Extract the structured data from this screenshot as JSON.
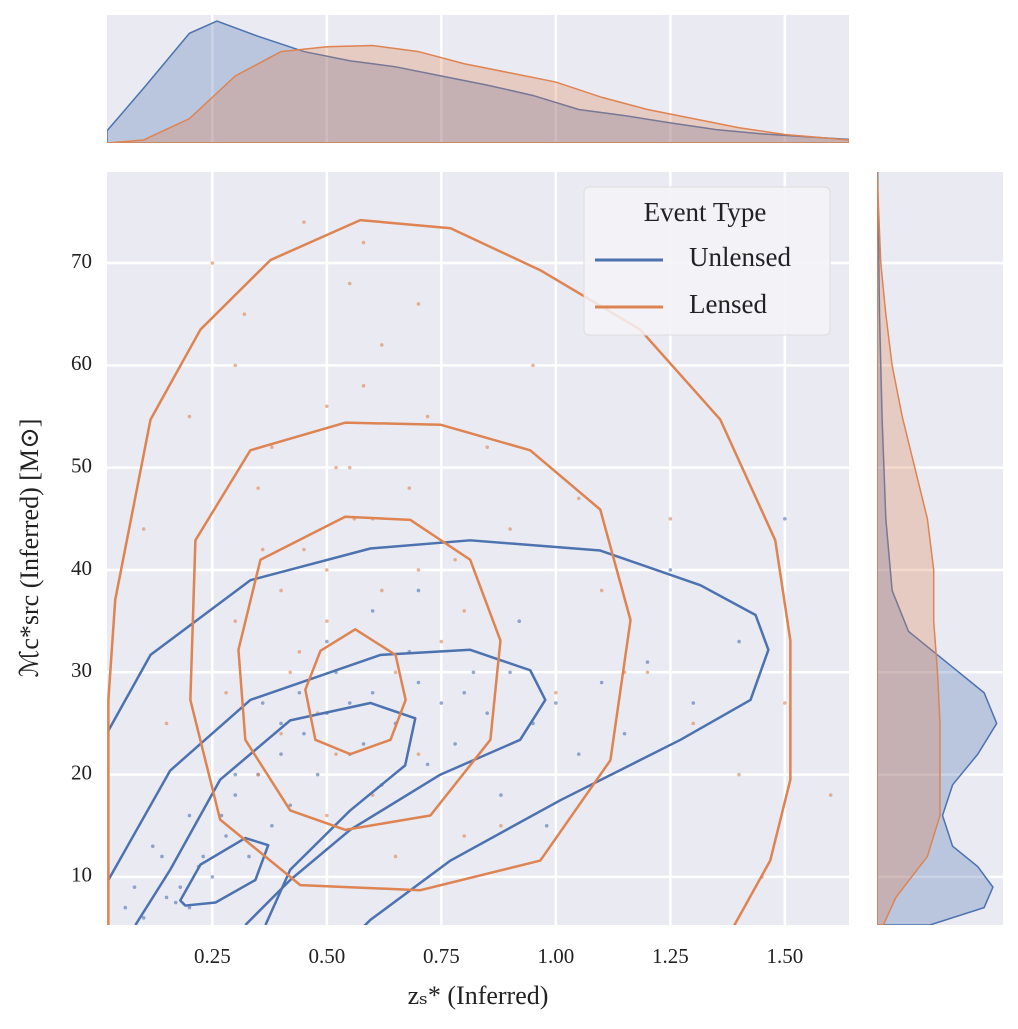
{
  "chart_data": {
    "type": "scatter",
    "xlabel": "zₛ* (Inferred)",
    "ylabel": "ℳc*src (Inferred) [M⊙]",
    "xlim": [
      0.02,
      1.64
    ],
    "ylim": [
      5.3,
      78.9
    ],
    "xticks": [
      0.25,
      {
        "value": 0.5,
        "label": "0.50"
      },
      0.75,
      {
        "value": 1.0,
        "label": "1.00"
      },
      1.25,
      {
        "value": 1.5,
        "label": "1.50"
      }
    ],
    "yticks": [
      10,
      20,
      30,
      40,
      50,
      60,
      70
    ],
    "grid": true,
    "legend": "upper right",
    "legend_title": "Event Type",
    "marginal_x_ylim": [
      0,
      2.1
    ],
    "marginal_y_xlim": [
      0,
      1.0
    ],
    "series": [
      {
        "name": "Unlensed",
        "color": "#4c72b0",
        "x": [
          0.15,
          0.18,
          0.2,
          0.22,
          0.25,
          0.12,
          0.1,
          0.28,
          0.3,
          0.17,
          0.35,
          0.4,
          0.45,
          0.5,
          0.55,
          0.6,
          0.65,
          0.7,
          0.75,
          0.8,
          0.85,
          0.9,
          0.95,
          1.0,
          1.05,
          1.1,
          0.42,
          0.48,
          0.52,
          0.58,
          0.62,
          0.68,
          0.72,
          0.38,
          0.33,
          0.27,
          0.23,
          0.08,
          0.06,
          1.2,
          1.3,
          1.4,
          0.88,
          0.92,
          0.78,
          0.5,
          0.44,
          0.6,
          1.15,
          0.3,
          0.2,
          0.14,
          0.98,
          1.25,
          1.5,
          0.7,
          0.4,
          0.36,
          0.55,
          0.82
        ],
        "y": [
          8,
          9,
          7,
          11,
          10,
          13,
          6,
          14,
          18,
          7.5,
          20,
          22,
          24,
          26,
          27,
          28,
          25,
          29,
          27,
          28,
          26,
          30,
          25,
          27,
          22,
          29,
          17,
          20,
          30,
          23,
          19,
          32,
          21,
          15,
          12,
          16,
          12,
          9,
          7,
          31,
          27,
          33,
          18,
          35,
          23,
          33,
          28,
          36,
          24,
          20,
          16,
          12,
          15,
          40,
          45,
          38,
          25,
          27,
          22,
          30
        ],
        "contours": [
          {
            "closed": false,
            "x": [
              0.023,
              0.115,
              0.333,
              0.595,
              0.813,
              1.097,
              1.316,
              1.436,
              1.464,
              1.425,
              1.272,
              1.01,
              0.77,
              0.595,
              0.508
            ],
            "y": [
              24.3,
              31.7,
              39.0,
              42.1,
              42.9,
              41.9,
              38.5,
              35.6,
              32.2,
              27.3,
              23.4,
              17.5,
              11.6,
              5.8,
              1.9
            ]
          },
          {
            "closed": false,
            "x": [
              0.023,
              0.158,
              0.333,
              0.617,
              0.813,
              0.944,
              0.977,
              0.922,
              0.748,
              0.551,
              0.42,
              0.322
            ],
            "y": [
              9.7,
              20.4,
              27.3,
              31.7,
              32.2,
              30.2,
              27.3,
              23.4,
              20.0,
              14.6,
              9.7,
              5.3
            ]
          },
          {
            "closed": false,
            "x": [
              0.082,
              0.158,
              0.267,
              0.42,
              0.595,
              0.693,
              0.671,
              0.551,
              0.42,
              0.366
            ],
            "y": [
              5.3,
              10.7,
              19.5,
              25.3,
              27.0,
              25.5,
              20.9,
              16.5,
              10.7,
              5.3
            ]
          },
          {
            "closed": true,
            "x": [
              0.18,
              0.224,
              0.322,
              0.372,
              0.344,
              0.257,
              0.191
            ],
            "y": [
              7.7,
              11.2,
              13.8,
              13.1,
              9.7,
              7.5,
              7.2
            ]
          }
        ],
        "marginal_x": {
          "x": [
            0.02,
            0.1,
            0.2,
            0.26,
            0.35,
            0.45,
            0.55,
            0.65,
            0.75,
            0.85,
            0.95,
            1.05,
            1.15,
            1.25,
            1.35,
            1.45,
            1.55,
            1.64
          ],
          "density": [
            0.2,
            0.9,
            1.8,
            2.0,
            1.75,
            1.5,
            1.35,
            1.25,
            1.1,
            0.95,
            0.78,
            0.55,
            0.45,
            0.33,
            0.22,
            0.15,
            0.1,
            0.06
          ]
        },
        "marginal_y": {
          "y": [
            5.3,
            7,
            9,
            11,
            13,
            16,
            19,
            22,
            25,
            28,
            31,
            34,
            38,
            45,
            55,
            65,
            78.9
          ],
          "density": [
            0.42,
            0.85,
            0.92,
            0.8,
            0.6,
            0.52,
            0.6,
            0.8,
            0.95,
            0.85,
            0.55,
            0.25,
            0.12,
            0.07,
            0.04,
            0.02,
            0.005
          ]
        }
      },
      {
        "name": "Lensed",
        "color": "#dd8452",
        "x": [
          0.1,
          0.2,
          0.3,
          0.35,
          0.4,
          0.45,
          0.5,
          0.55,
          0.6,
          0.65,
          0.7,
          0.75,
          0.8,
          0.9,
          1.0,
          1.1,
          1.2,
          1.3,
          1.4,
          1.5,
          1.6,
          0.25,
          0.32,
          0.38,
          0.42,
          0.48,
          0.52,
          0.58,
          0.62,
          0.68,
          0.72,
          0.78,
          0.85,
          0.95,
          1.05,
          1.15,
          0.3,
          0.4,
          0.5,
          0.6,
          0.7,
          0.45,
          0.55,
          0.35,
          0.65,
          0.15,
          0.28,
          0.88,
          1.25,
          1.45,
          0.5,
          0.56,
          0.62,
          0.44,
          0.5,
          0.58,
          0.7,
          0.8,
          0.36,
          0.52
        ],
        "y": [
          44,
          55,
          60,
          48,
          38,
          42,
          35,
          50,
          45,
          30,
          40,
          33,
          36,
          44,
          28,
          38,
          30,
          25,
          20,
          27,
          18,
          70,
          65,
          52,
          30,
          26,
          22,
          58,
          62,
          48,
          55,
          41,
          52,
          60,
          47,
          30,
          35,
          24,
          16,
          18,
          66,
          74,
          68,
          20,
          12,
          25,
          28,
          15,
          45,
          10,
          40,
          45,
          38,
          32,
          56,
          72,
          22,
          14,
          42,
          50
        ],
        "contours": [
          {
            "closed": false,
            "x": [
              0.023,
              0.023,
              0.038,
              0.115,
              0.224,
              0.377,
              0.573,
              0.77,
              0.966,
              1.184,
              1.359,
              1.479,
              1.512,
              1.512,
              1.468,
              1.359
            ],
            "y": [
              1.9,
              27.3,
              37.1,
              54.7,
              63.5,
              70.3,
              74.2,
              73.4,
              69.3,
              63.5,
              54.7,
              42.9,
              33.1,
              19.5,
              11.6,
              2.8
            ]
          },
          {
            "closed": true,
            "x": [
              0.54,
              0.333,
              0.213,
              0.202,
              0.267,
              0.442,
              0.704,
              0.966,
              1.119,
              1.163,
              1.097,
              0.944,
              0.748
            ],
            "y": [
              54.4,
              51.7,
              42.9,
              27.3,
              15.6,
              9.2,
              8.7,
              11.6,
              21.4,
              35.1,
              45.9,
              51.7,
              54.2
            ]
          },
          {
            "closed": true,
            "x": [
              0.54,
              0.355,
              0.307,
              0.322,
              0.42,
              0.54,
              0.726,
              0.857,
              0.879,
              0.813,
              0.682
            ],
            "y": [
              45.2,
              41.0,
              32.2,
              23.4,
              16.5,
              14.6,
              16.0,
              23.4,
              33.1,
              41.0,
              44.9
            ]
          },
          {
            "closed": true,
            "x": [
              0.562,
              0.65,
              0.672,
              0.639,
              0.551,
              0.475,
              0.453,
              0.486
            ],
            "y": [
              34.2,
              31.7,
              27.3,
              23.4,
              22.0,
              23.4,
              28.3,
              32.1
            ]
          }
        ],
        "marginal_x": {
          "x": [
            0.02,
            0.1,
            0.2,
            0.3,
            0.4,
            0.5,
            0.6,
            0.7,
            0.8,
            0.9,
            1.0,
            1.1,
            1.2,
            1.3,
            1.4,
            1.5,
            1.64
          ],
          "density": [
            0,
            0.05,
            0.4,
            1.1,
            1.5,
            1.58,
            1.6,
            1.5,
            1.3,
            1.15,
            1.0,
            0.75,
            0.55,
            0.4,
            0.25,
            0.14,
            0.05
          ]
        },
        "marginal_y": {
          "y": [
            5.3,
            8,
            12,
            16,
            20,
            25,
            30,
            35,
            40,
            45,
            50,
            55,
            60,
            65,
            70,
            78.9
          ],
          "density": [
            0.05,
            0.15,
            0.4,
            0.5,
            0.5,
            0.5,
            0.48,
            0.45,
            0.45,
            0.4,
            0.3,
            0.2,
            0.12,
            0.07,
            0.03,
            0
          ]
        }
      }
    ]
  }
}
